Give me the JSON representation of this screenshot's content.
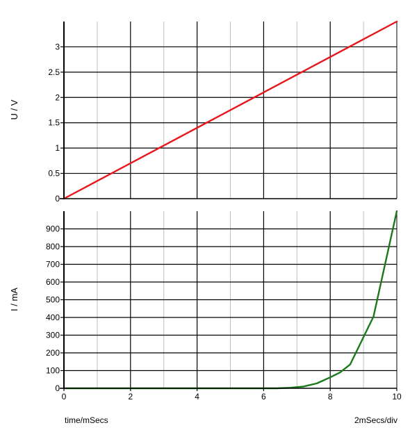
{
  "chart_data": [
    {
      "type": "line",
      "ylabel": "U / V",
      "xlim": [
        0,
        10
      ],
      "ylim": [
        0,
        3.5
      ],
      "yticks": [
        0,
        0.5,
        1,
        1.5,
        2,
        2.5,
        3
      ],
      "grid": true,
      "series": [
        {
          "color": "#e8161b",
          "x": [
            0,
            10
          ],
          "y": [
            0,
            3.5
          ]
        }
      ]
    },
    {
      "type": "line",
      "ylabel": "I / mA",
      "xlim": [
        0,
        10
      ],
      "ylim": [
        0,
        1000
      ],
      "xticks": [
        0,
        2,
        4,
        6,
        8,
        10
      ],
      "yticks": [
        0,
        100,
        200,
        300,
        400,
        500,
        600,
        700,
        800,
        900
      ],
      "grid": true,
      "series": [
        {
          "color": "#1a7a1a",
          "x": [
            0,
            6.4,
            6.8,
            7.2,
            7.6,
            8.0,
            8.3,
            8.6,
            9.3,
            10.0
          ],
          "y": [
            0,
            0,
            3,
            10,
            28,
            62,
            90,
            135,
            405,
            1000
          ]
        }
      ]
    }
  ],
  "footer": {
    "xlabel": "time/mSecs",
    "scale": "2mSecs/div"
  },
  "colors": {
    "major_grid": "#000000",
    "minor_grid": "#c0c0c0",
    "background": "#ffffff"
  }
}
